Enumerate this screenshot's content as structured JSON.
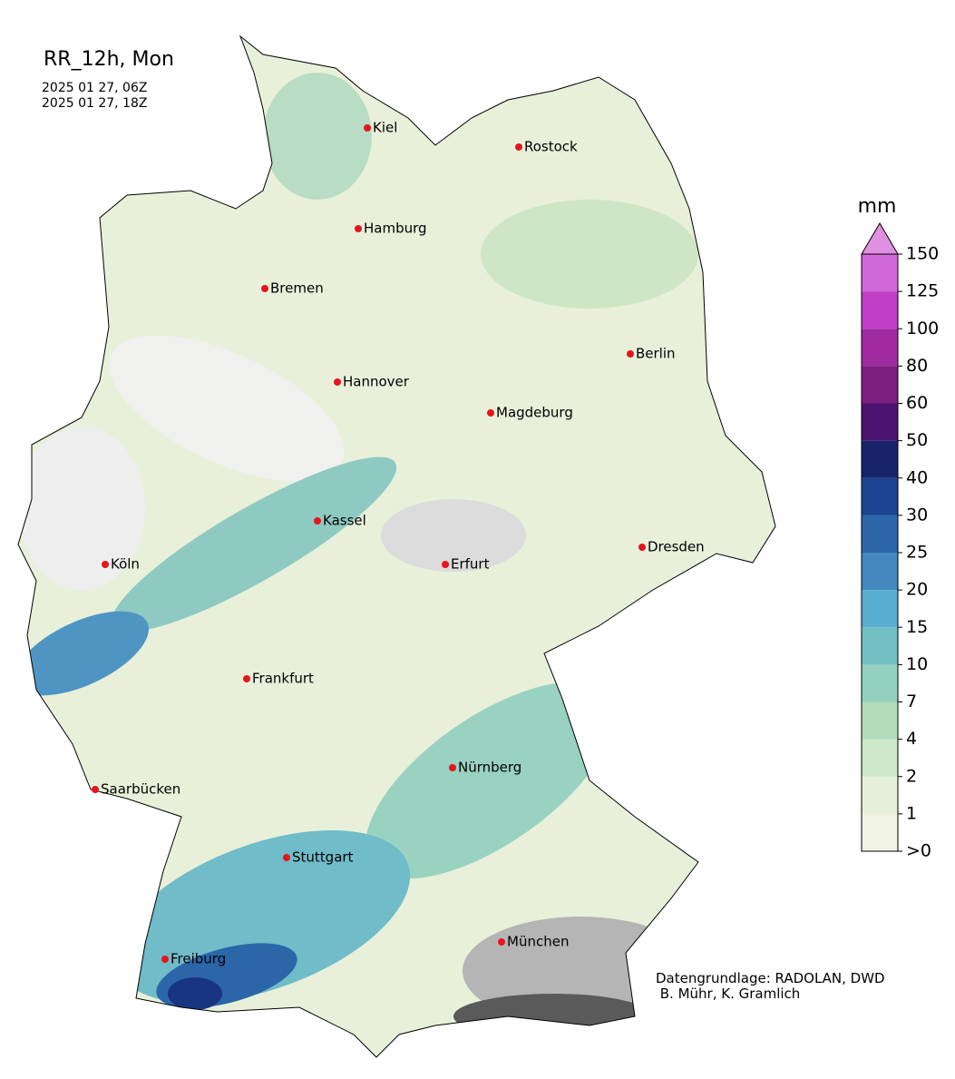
{
  "title": "RR_12h, Mon",
  "period": [
    "2025 01 27, 06Z",
    "2025 01 27, 18Z"
  ],
  "cities": [
    "Kiel",
    "Rostock",
    "Hamburg",
    "Bremen",
    "Berlin",
    "Hannover",
    "Magdeburg",
    "Kassel",
    "Dresden",
    "Köln",
    "Erfurt",
    "Frankfurt",
    "Nürnberg",
    "Saarbücken",
    "Stuttgart",
    "München",
    "Freiburg"
  ],
  "city_color": "#e8141c",
  "legend": {
    "unit": "mm",
    "ticks": [
      {
        "value": 0,
        "label": ">0"
      },
      1,
      2,
      4,
      7,
      10,
      15,
      20,
      25,
      30,
      40,
      50,
      60,
      80,
      100,
      125,
      150
    ],
    "colors": [
      "#f0f2e4",
      "#e4f0dc",
      "#cde8c8",
      "#b2dcbc",
      "#94d0c0",
      "#74bfc4",
      "#5aaed0",
      "#4388bd",
      "#2b66a8",
      "#1a4490",
      "#18236a",
      "#4b1470",
      "#7a1e80",
      "#a02ba0",
      "#c03ec8",
      "#d068d8"
    ],
    "extend_color": "#e090e0"
  },
  "credits": [
    "Datengrundlage: RADOLAN, DWD",
    " B. Mühr, K. Gramlich"
  ]
}
